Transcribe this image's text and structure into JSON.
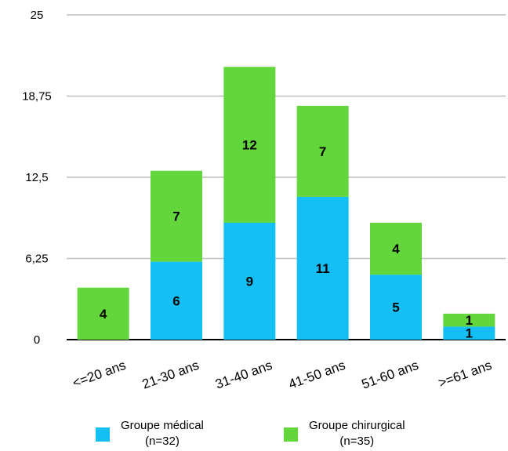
{
  "chart_data": {
    "type": "bar",
    "stacked": true,
    "categories": [
      "<=20 ans",
      "21-30 ans",
      "31-40 ans",
      "41-50 ans",
      "51-60 ans",
      ">=61 ans"
    ],
    "series": [
      {
        "name": "Groupe médical",
        "subtitle": "(n=32)",
        "color": "#14bff6",
        "values": [
          0,
          6,
          9,
          11,
          5,
          1
        ]
      },
      {
        "name": "Groupe chirurgical",
        "subtitle": "(n=35)",
        "color": "#62d63a",
        "values": [
          4,
          7,
          12,
          7,
          4,
          1
        ]
      }
    ],
    "yticks": [
      "0",
      "6,25",
      "12,5",
      "18,75",
      "25"
    ],
    "ylim": [
      0,
      25
    ],
    "grid": true,
    "legend_position": "bottom"
  }
}
